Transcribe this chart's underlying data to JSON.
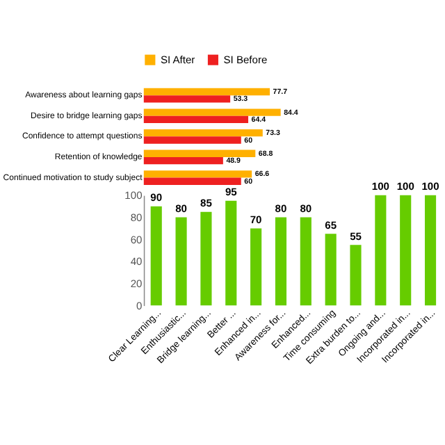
{
  "chart_data": [
    {
      "type": "bar",
      "orientation": "horizontal",
      "data_labels": true,
      "legend": "top",
      "grid": false,
      "tick_labels": "y",
      "categories": [
        "Awareness about learning gaps",
        "Desire to bridge  learning gaps",
        "Confidence to attempt  questions",
        "Retention of knowledge",
        "Continued motivation to study subject"
      ],
      "series": [
        {
          "name": "SI After",
          "color": "#ffb000",
          "values": [
            77.7,
            84.4,
            73.3,
            68.8,
            66.6
          ]
        },
        {
          "name": "SI Before",
          "color": "#ee2020",
          "values": [
            53.3,
            64.4,
            60,
            48.9,
            60
          ]
        }
      ]
    },
    {
      "type": "bar",
      "data_labels": true,
      "grid": false,
      "color": "#66cc00",
      "categories": [
        "Clear Learning...",
        "Enthusiastic...",
        "Bridge learning...",
        "Better ...",
        "Enhanced in...",
        "Awareness for...",
        "Enhanced...",
        "Time consuming",
        "Extra burden to...",
        "Ongoing and...",
        "Incorporated in...",
        "Incorporated in..."
      ],
      "values": [
        90,
        80,
        85,
        95,
        70,
        80,
        80,
        65,
        55,
        100,
        100,
        100
      ],
      "ylim": [
        0,
        100
      ],
      "yticks": [
        0,
        20,
        40,
        60,
        80,
        100
      ]
    }
  ]
}
